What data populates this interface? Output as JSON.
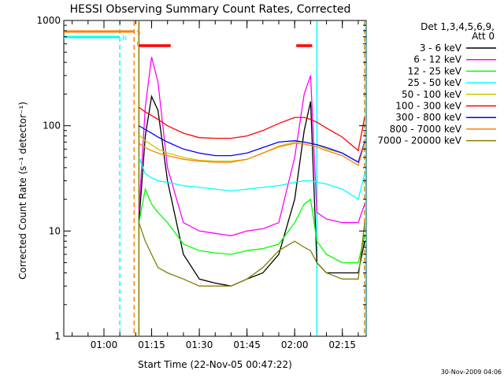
{
  "chart_data": {
    "type": "line",
    "title": "HESSI Observing Summary Count Rates, Corrected",
    "xlabel": "Start Time (22-Nov-05 00:47:22)",
    "ylabel": "Corrected Count Rate (s⁻¹ detector⁻¹)",
    "yscale": "log",
    "ylim": [
      1,
      1000
    ],
    "xlim": [
      "00:47:22",
      "02:22:30"
    ],
    "x_ticks": [
      "01:00",
      "01:15",
      "01:30",
      "01:45",
      "02:00",
      "02:15"
    ],
    "y_ticks": [
      "1",
      "10",
      "100",
      "1000"
    ],
    "legend_header": [
      "Det 1,3,4,5,6,9,",
      "Att 0"
    ],
    "legend_position": "right",
    "footer_date": "30-Nov-2009 04:06",
    "flags": [
      {
        "label": "S",
        "color": "#ff8000",
        "start": "00:47:22",
        "end": "01:09:30"
      },
      {
        "label": "N",
        "color": "#00ffff",
        "start": "00:47:22",
        "end": "01:05:00"
      },
      {
        "label": "F",
        "color": "#ff8000",
        "start": "01:09:30",
        "end": "01:09:30"
      }
    ],
    "saa_bars": [
      {
        "color": "#ff0000",
        "start": "01:11:00",
        "end": "01:21:00"
      },
      {
        "color": "#ff0000",
        "start": "02:00:30",
        "end": "02:05:30"
      }
    ],
    "vertical_markers": [
      {
        "color": "#00ffff",
        "time": "01:05:00",
        "style": "dashed"
      },
      {
        "color": "#ff8000",
        "time": "01:09:30",
        "style": "dashed"
      },
      {
        "color": "#808000",
        "time": "01:11:00",
        "style": "solid"
      },
      {
        "color": "#00ffff",
        "time": "02:07:00",
        "style": "solid"
      },
      {
        "color": "#ff8000",
        "time": "02:22:00",
        "style": "dashed"
      },
      {
        "color": "#00ffff",
        "time": "02:22:20",
        "style": "solid"
      }
    ],
    "x": [
      "01:11",
      "01:13",
      "01:15",
      "01:17",
      "01:20",
      "01:25",
      "01:30",
      "01:35",
      "01:40",
      "01:45",
      "01:50",
      "01:55",
      "02:00",
      "02:03",
      "02:05",
      "02:07",
      "02:10",
      "02:15",
      "02:20",
      "02:22"
    ],
    "series": [
      {
        "name": "3 - 6 keV",
        "color": "#000000",
        "values": [
          12,
          80,
          190,
          140,
          30,
          6,
          3.5,
          3.2,
          3,
          3.5,
          4,
          6,
          20,
          90,
          170,
          5,
          4,
          4,
          4,
          8
        ]
      },
      {
        "name": "6 - 12 keV",
        "color": "#ff00ff",
        "values": [
          15,
          150,
          450,
          260,
          40,
          12,
          10,
          9.5,
          9,
          10,
          10.5,
          12,
          50,
          200,
          300,
          15,
          13,
          12,
          12,
          18
        ]
      },
      {
        "name": "12 - 25 keV",
        "color": "#00ff00",
        "values": [
          12,
          25,
          18,
          15,
          12,
          7.5,
          6.5,
          6.2,
          6,
          6.5,
          6.8,
          7.5,
          12,
          18,
          20,
          8,
          6,
          5,
          5,
          9
        ]
      },
      {
        "name": "25 - 50 keV",
        "color": "#00ffff",
        "values": [
          50,
          35,
          32,
          30,
          29,
          27,
          26,
          25,
          24,
          25,
          26,
          27,
          29,
          30,
          30,
          29,
          28,
          25,
          20,
          35
        ]
      },
      {
        "name": "50 - 100 keV",
        "color": "#c8c800",
        "values": [
          82,
          72,
          66,
          60,
          55,
          50,
          47,
          46,
          46,
          48,
          55,
          64,
          70,
          70,
          68,
          66,
          60,
          55,
          45,
          70
        ]
      },
      {
        "name": "100 - 300 keV",
        "color": "#ff0000",
        "values": [
          150,
          135,
          125,
          115,
          100,
          85,
          77,
          76,
          76,
          80,
          90,
          105,
          120,
          120,
          115,
          108,
          95,
          78,
          58,
          120
        ]
      },
      {
        "name": "300 - 800 keV",
        "color": "#0000ff",
        "values": [
          100,
          92,
          85,
          78,
          70,
          60,
          55,
          52,
          52,
          55,
          62,
          70,
          72,
          70,
          68,
          66,
          62,
          55,
          45,
          70
        ]
      },
      {
        "name": "800 - 7000 keV",
        "color": "#ff8000",
        "values": [
          68,
          62,
          58,
          55,
          52,
          48,
          46,
          45,
          45,
          48,
          55,
          63,
          68,
          67,
          65,
          63,
          58,
          52,
          42,
          68
        ]
      },
      {
        "name": "7000 - 20000 keV",
        "color": "#808000",
        "values": [
          12,
          8,
          6,
          4.5,
          4,
          3.5,
          3,
          3,
          3,
          3.5,
          4.5,
          6.5,
          8,
          7,
          6.5,
          5,
          4,
          3.5,
          3.5,
          12
        ]
      }
    ]
  }
}
